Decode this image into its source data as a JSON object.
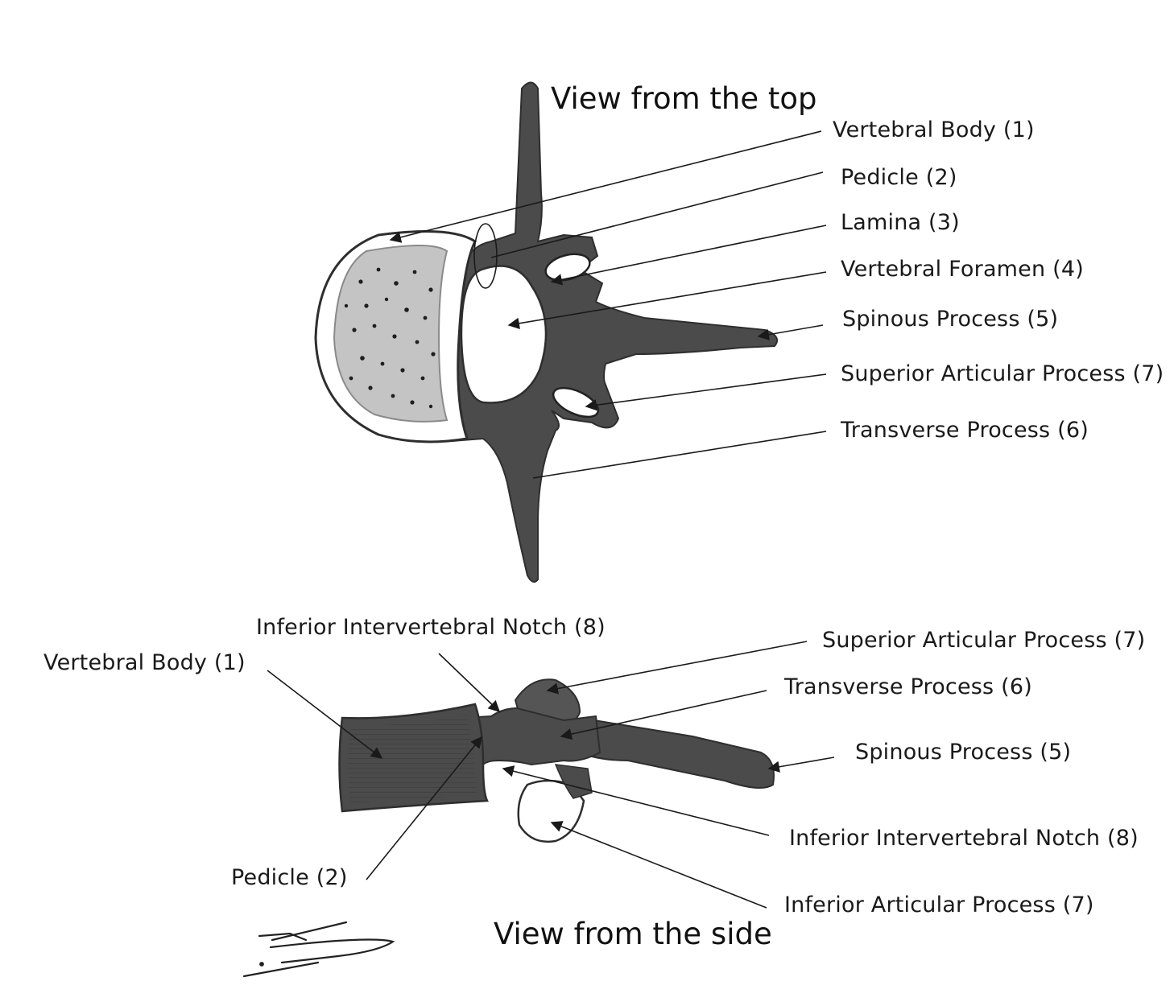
{
  "colors": {
    "bone": "#4b4b4b",
    "bone_dark": "#2e2e2e",
    "spongy": "#c9c9c9",
    "line": "#1a1a1a",
    "paper": "#ffffff"
  },
  "top_view": {
    "title": "View from the top",
    "labels": [
      "Vertebral Body (1)",
      "Pedicle (2)",
      "Lamina (3)",
      "Vertebral Foramen (4)",
      "Spinous Process (5)",
      "Superior Articular Process (7)",
      "Transverse Process (6)"
    ]
  },
  "side_view": {
    "title": "View from the side",
    "labels": [
      "Inferior Intervertebral Notch (8)",
      "Vertebral Body (1)",
      "Superior Articular Process (7)",
      "Transverse Process (6)",
      "Spinous Process (5)",
      "Inferior Intervertebral Notch (8)",
      "Inferior Articular Process (7)",
      "Pedicle (2)"
    ]
  }
}
